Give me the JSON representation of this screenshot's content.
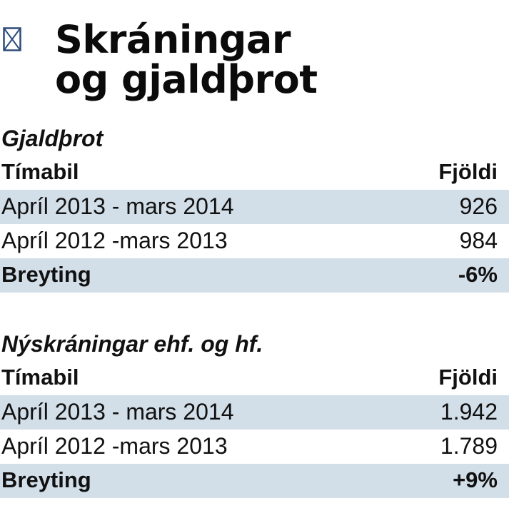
{
  "header": {
    "icon": "checkbox-x-icon",
    "icon_color": "#2d4c7a",
    "title_line1": "Skráningar",
    "title_line2": "og gjaldþrot"
  },
  "colors": {
    "row_shade": "#d2dee8",
    "text": "#111111"
  },
  "sections": [
    {
      "heading": "Gjaldþrot",
      "columns": [
        "Tímabil",
        "Fjöldi"
      ],
      "rows": [
        {
          "period": "Apríl  2013 - mars 2014",
          "count": "926"
        },
        {
          "period": "Apríl 2012 -mars 2013",
          "count": "984"
        }
      ],
      "total": {
        "label": "Breyting",
        "value": "-6%"
      }
    },
    {
      "heading": "Nýskráningar ehf. og hf.",
      "columns": [
        "Tímabil",
        "Fjöldi"
      ],
      "rows": [
        {
          "period": "Apríl  2013 - mars 2014",
          "count": "1.942"
        },
        {
          "period": "Apríl 2012 -mars 2013",
          "count": "1.789"
        }
      ],
      "total": {
        "label": "Breyting",
        "value": "+9%"
      }
    }
  ]
}
